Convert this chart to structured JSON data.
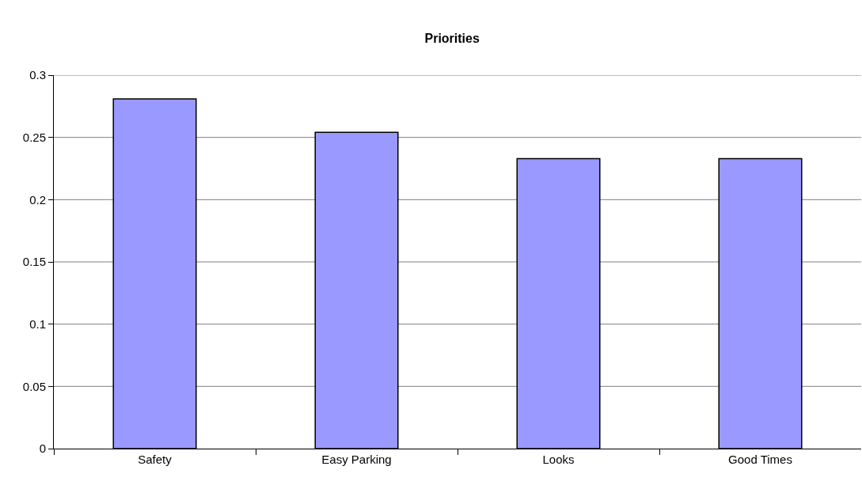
{
  "chart_data": {
    "type": "bar",
    "title": "Priorities",
    "categories": [
      "Safety",
      "Easy Parking",
      "Looks",
      "Good Times"
    ],
    "values": [
      0.281,
      0.254,
      0.233,
      0.233
    ],
    "color": "#9999ff",
    "ylim": [
      0,
      0.3
    ],
    "yticks": [
      0,
      0.05,
      0.1,
      0.15,
      0.2,
      0.25,
      0.3
    ],
    "grid": "y"
  }
}
